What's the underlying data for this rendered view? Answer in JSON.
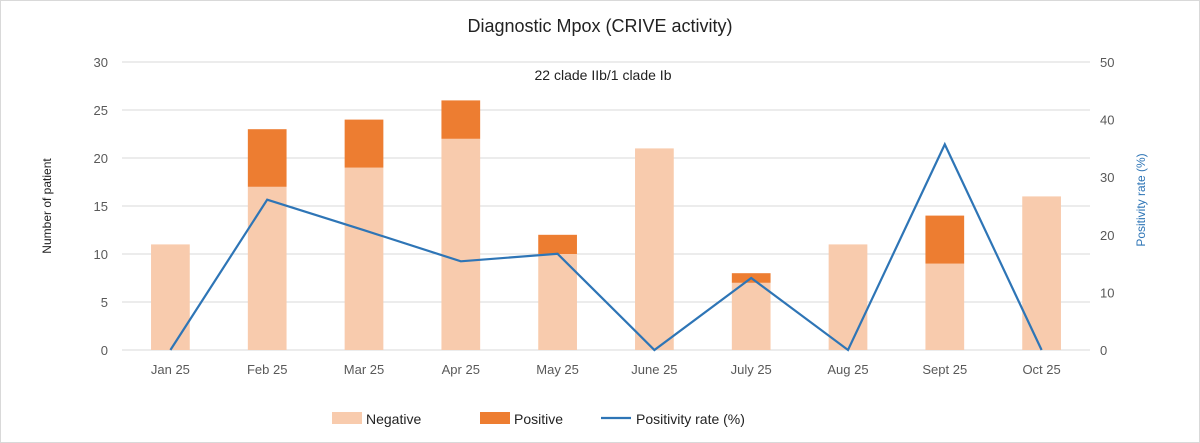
{
  "chart_data": {
    "type": "bar",
    "title": "Diagnostic Mpox (CRIVE activity)",
    "annotation": "22 clade IIb/1 clade Ib",
    "ylabel": "Number of patient",
    "y2label": "Positivity rate (%)",
    "ylim": [
      0,
      30
    ],
    "y2lim": [
      0,
      50
    ],
    "yticks": [
      0,
      5,
      10,
      15,
      20,
      25,
      30
    ],
    "y2ticks": [
      0,
      10,
      20,
      30,
      40,
      50
    ],
    "grid": true,
    "legend_placement": "bottom",
    "stacked": true,
    "categories": [
      "Jan 25",
      "Feb 25",
      "Mar 25",
      "Apr 25",
      "May 25",
      "June 25",
      "July 25",
      "Aug 25",
      "Sept 25",
      "Oct 25"
    ],
    "series": [
      {
        "name": "Negative",
        "type": "bar",
        "axis": "left",
        "color": "#f8cbad",
        "values": [
          11,
          17,
          19,
          22,
          10,
          21,
          7,
          11,
          9,
          16
        ]
      },
      {
        "name": "Positive",
        "type": "bar",
        "axis": "left",
        "color": "#ed7d31",
        "values": [
          0,
          6,
          5,
          4,
          2,
          0,
          1,
          0,
          5,
          0
        ]
      },
      {
        "name": "Positivity rate (%)",
        "type": "line",
        "axis": "right",
        "color": "#2e75b6",
        "values": [
          0,
          26.1,
          20.8,
          15.4,
          16.7,
          0,
          12.5,
          0,
          35.7,
          0
        ]
      }
    ],
    "colors": {
      "y2label": "#2e75b6",
      "grid": "#d9d9d9"
    }
  }
}
